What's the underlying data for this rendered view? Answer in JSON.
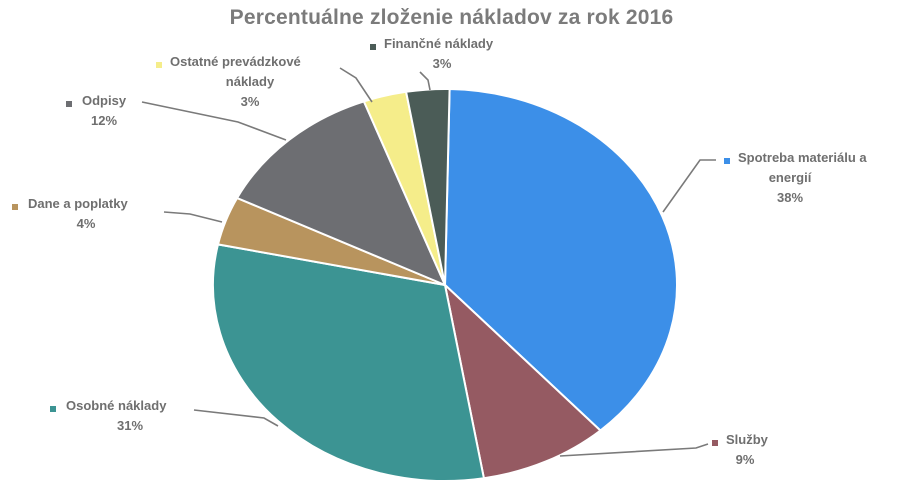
{
  "chart_data": {
    "type": "pie",
    "title": "Percentuálne zloženie nákladov za rok 2016",
    "slices": [
      {
        "name": "Spotreba materiálu a energií",
        "label_lines": [
          "Spotreba materiálu a",
          "energií"
        ],
        "value": 38,
        "pct_label": "38%",
        "color": "#3c8fe8"
      },
      {
        "name": "Služby",
        "label_lines": [
          "Služby"
        ],
        "value": 9,
        "pct_label": "9%",
        "color": "#955a62"
      },
      {
        "name": "Osobné náklady",
        "label_lines": [
          "Osobné náklady"
        ],
        "value": 31,
        "pct_label": "31%",
        "color": "#3c9493"
      },
      {
        "name": "Dane a poplatky",
        "label_lines": [
          "Dane a poplatky"
        ],
        "value": 4,
        "pct_label": "4%",
        "color": "#b8945e"
      },
      {
        "name": "Odpisy",
        "label_lines": [
          "Odpisy"
        ],
        "value": 12,
        "pct_label": "12%",
        "color": "#6d6e72"
      },
      {
        "name": "Ostatné prevádzkové náklady",
        "label_lines": [
          "Ostatné prevádzkové",
          "náklady"
        ],
        "value": 3,
        "pct_label": "3%",
        "color": "#f5ed8a"
      },
      {
        "name": "Finančné náklady",
        "label_lines": [
          "Finančné náklady"
        ],
        "value": 3,
        "pct_label": "3%",
        "color": "#4b5c57"
      }
    ]
  }
}
